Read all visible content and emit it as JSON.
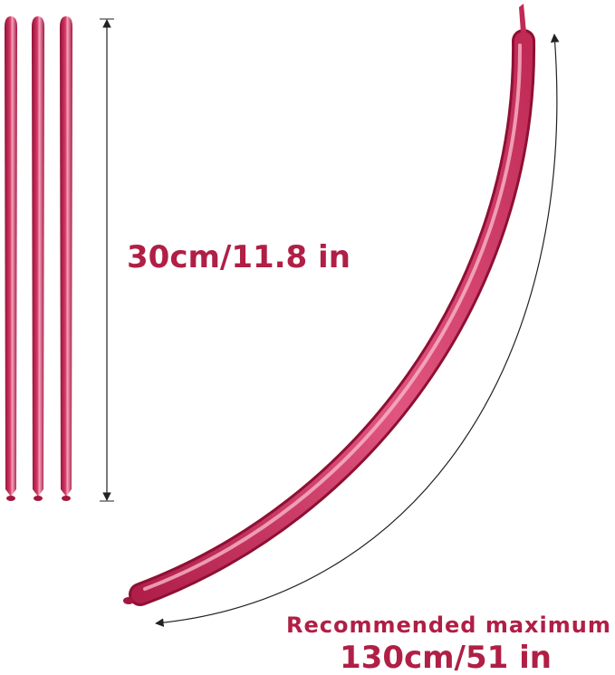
{
  "labels": {
    "short_length": "30cm/11.8 in",
    "caption": "Recommended maximum",
    "long_length": "130cm/51 in"
  }
}
